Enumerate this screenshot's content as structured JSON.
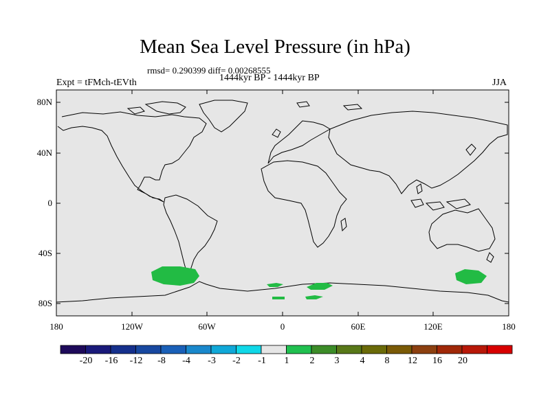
{
  "title": "Mean Sea Level Pressure (in hPa)",
  "stats": "rmsd= 0.290399  diff= 0.00268555",
  "period": "1444kyr BP - 1444kyr BP",
  "experiment": "Expt = tFMch-tEVth",
  "season": "JJA",
  "lat_labels": [
    "80N",
    "40N",
    "0",
    "40S",
    "80S"
  ],
  "lon_labels": [
    "180",
    "120W",
    "60W",
    "0",
    "60E",
    "120E",
    "180"
  ],
  "colorbar": {
    "colors": [
      "#1e0a5a",
      "#1a1a7a",
      "#15308c",
      "#1848a0",
      "#1a60b8",
      "#1a88cc",
      "#10a8d8",
      "#10d8e8",
      "#e6e6e6",
      "#20c050",
      "#3c8c28",
      "#587818",
      "#6a6a08",
      "#7a5a06",
      "#8c4010",
      "#a02808",
      "#b81808",
      "#d80000"
    ],
    "labels": [
      "-20",
      "-16",
      "-12",
      "-8",
      "-4",
      "-3",
      "-2",
      "-1",
      "1",
      "2",
      "3",
      "4",
      "8",
      "12",
      "16",
      "20"
    ]
  },
  "map_colors": {
    "ocean": "#e6e6e6",
    "anomaly": "#22bb44",
    "coast": "#000000"
  }
}
